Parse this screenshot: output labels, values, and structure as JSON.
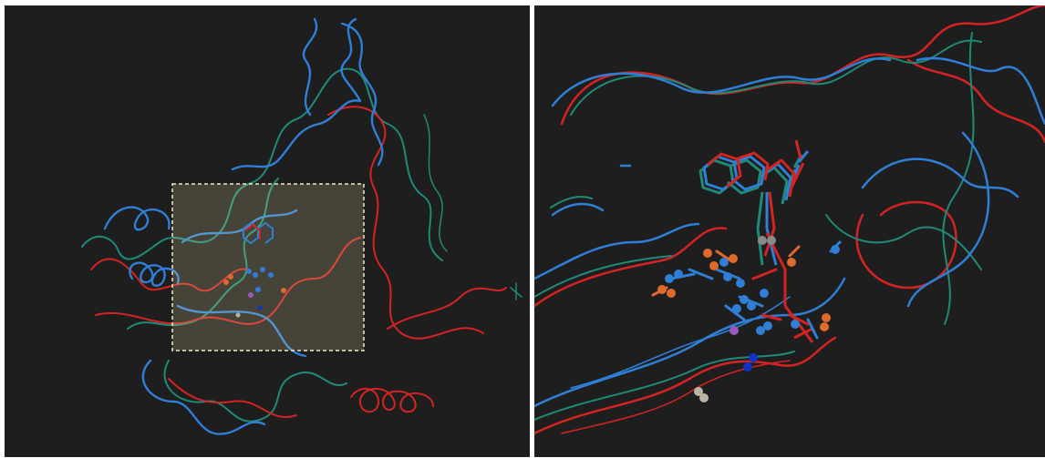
{
  "figure": {
    "left_panel": "overview",
    "right_panel": "zoomed-binding-pocket"
  },
  "colors": {
    "background": "#1e1e1e",
    "chain_blue": "#2f7fd6",
    "chain_red": "#d42323",
    "chain_teal": "#1f8a78",
    "ligand_orange": "#e06a2e",
    "ligand_purple": "#9b59b6",
    "ion_blue": "#1032c8",
    "water_grey": "#b8b3a2",
    "highlight_box_fill": "#fff4b0",
    "highlight_box_border": "#f2ebc2"
  },
  "icons": [
    "zoom-region-box",
    "protein-backbone-ribbons",
    "ligand-sticks"
  ]
}
